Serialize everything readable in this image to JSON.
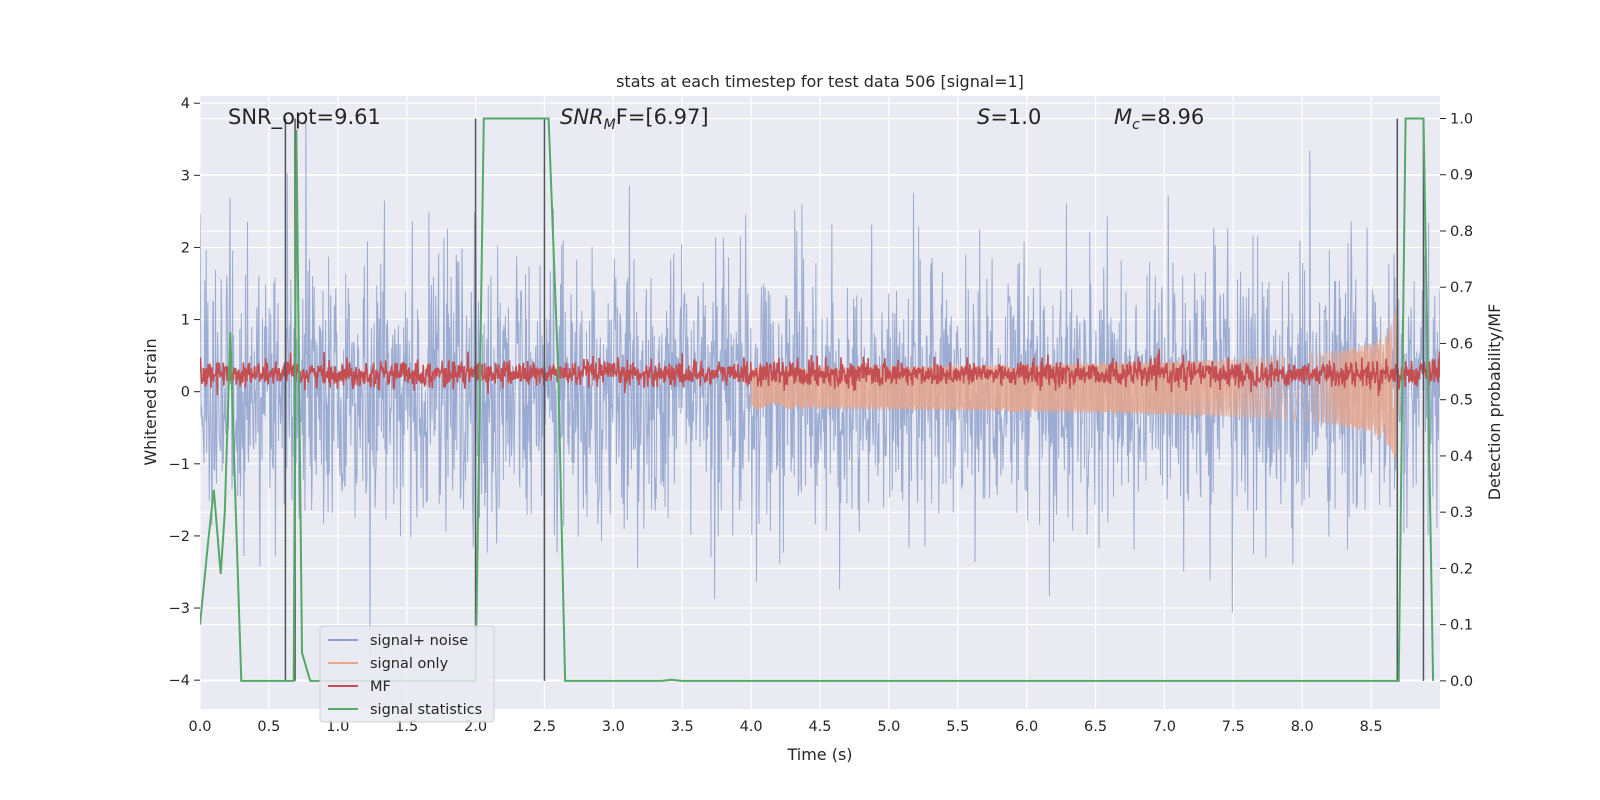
{
  "chart_data": {
    "type": "line",
    "title": "stats at each timestep for test data 506 [signal=1]",
    "xlabel": "Time (s)",
    "ylabel": "Whitened strain",
    "y2label": "Detection probability/MF",
    "xlim": [
      0.0,
      9.0
    ],
    "ylim": [
      -4.4,
      4.1
    ],
    "y2lim": [
      -0.05,
      1.04
    ],
    "x_ticks": [
      0.0,
      0.5,
      1.0,
      1.5,
      2.0,
      2.5,
      3.0,
      3.5,
      4.0,
      4.5,
      5.0,
      5.5,
      6.0,
      6.5,
      7.0,
      7.5,
      8.0,
      8.5
    ],
    "x_tick_labels": [
      "0.0",
      "0.5",
      "1.0",
      "1.5",
      "2.0",
      "2.5",
      "3.0",
      "3.5",
      "4.0",
      "4.5",
      "5.0",
      "5.5",
      "6.0",
      "6.5",
      "7.0",
      "7.5",
      "8.0",
      "8.5"
    ],
    "y_ticks": [
      -4,
      -3,
      -2,
      -1,
      0,
      1,
      2,
      3,
      4
    ],
    "y_tick_labels": [
      "−4",
      "−3",
      "−2",
      "−1",
      "0",
      "1",
      "2",
      "3",
      "4"
    ],
    "y2_ticks": [
      0.0,
      0.1,
      0.2,
      0.3,
      0.4,
      0.5,
      0.6,
      0.7,
      0.8,
      0.9,
      1.0
    ],
    "y2_tick_labels": [
      "0.0",
      "0.1",
      "0.2",
      "0.3",
      "0.4",
      "0.5",
      "0.6",
      "0.7",
      "0.8",
      "0.9",
      "1.0"
    ],
    "grid": true,
    "legend_position": "lower-left",
    "annotations": {
      "snr_opt": "SNR_opt=9.61",
      "snr_mf_italic": "SNR",
      "snr_mf_sub": "M",
      "snr_mf_rest": "F=[6.97]",
      "s_italic": "S",
      "s_rest": "=1.0",
      "mc_italic": "M",
      "mc_sub": "c",
      "mc_rest": "=8.96"
    },
    "series": [
      {
        "name": "signal+ noise",
        "color": "#8da0cb",
        "description_kind": "noise",
        "amplitude_sd": 0.95
      },
      {
        "name": "signal only",
        "color": "#e9a58a",
        "description_kind": "chirp",
        "merger_time": 8.7
      },
      {
        "name": "MF",
        "color": "#c44e52",
        "description_kind": "band",
        "center": 0.25,
        "spread": 0.15
      },
      {
        "name": "signal statistics",
        "color": "#55a868",
        "axis": "right",
        "x": [
          0.0,
          0.06,
          0.1,
          0.15,
          0.18,
          0.22,
          0.26,
          0.3,
          0.6,
          0.62,
          0.68,
          0.7,
          0.74,
          0.8,
          1.95,
          2.0,
          2.06,
          2.5,
          2.53,
          2.6,
          2.65,
          3.35,
          3.42,
          3.5,
          8.7,
          8.75,
          8.87,
          8.88,
          8.95
        ],
        "y": [
          0.1,
          0.25,
          0.34,
          0.19,
          0.3,
          0.62,
          0.3,
          0.0,
          0.0,
          0.0,
          0.0,
          0.98,
          0.05,
          0.0,
          0.0,
          0.0,
          1.0,
          1.0,
          1.0,
          0.55,
          0.0,
          0.0,
          0.002,
          0.0,
          0.0,
          1.0,
          1.0,
          1.0,
          0.0
        ]
      }
    ],
    "vertical_markers": [
      0.62,
      0.69,
      2.0,
      2.5,
      8.69,
      8.88
    ]
  }
}
